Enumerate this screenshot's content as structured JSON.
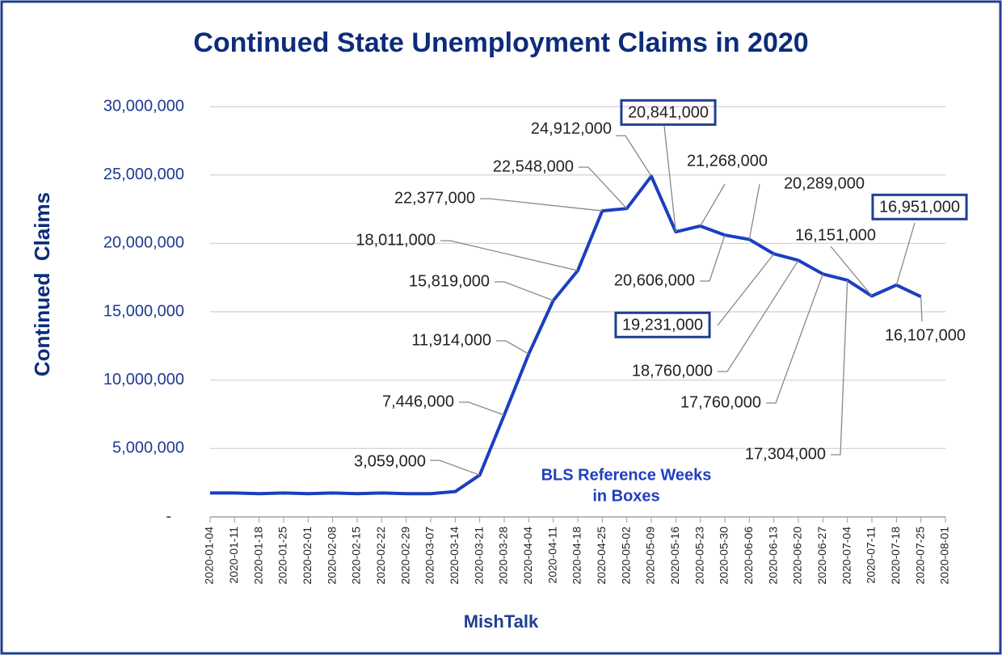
{
  "chart_data": {
    "type": "line",
    "title": "Continued State Unemployment Claims in 2020",
    "y_label": "Continued  Claims",
    "x_label": "MishTalk",
    "annotation": [
      "BLS Reference Weeks",
      "in Boxes"
    ],
    "categories": [
      "2020-01-04",
      "2020-01-11",
      "2020-01-18",
      "2020-01-25",
      "2020-02-01",
      "2020-02-08",
      "2020-02-15",
      "2020-02-22",
      "2020-02-29",
      "2020-03-07",
      "2020-03-14",
      "2020-03-21",
      "2020-03-28",
      "2020-04-04",
      "2020-04-11",
      "2020-04-18",
      "2020-04-25",
      "2020-05-02",
      "2020-05-09",
      "2020-05-16",
      "2020-05-23",
      "2020-05-30",
      "2020-06-06",
      "2020-06-13",
      "2020-06-20",
      "2020-06-27",
      "2020-07-04",
      "2020-07-11",
      "2020-07-18",
      "2020-07-25",
      "2020-08-01"
    ],
    "series": [
      {
        "name": "Continued Claims",
        "color": "#1a3fbf",
        "values": [
          1750000,
          1750000,
          1700000,
          1750000,
          1700000,
          1750000,
          1700000,
          1750000,
          1700000,
          1700000,
          1850000,
          3059000,
          7446000,
          11914000,
          15819000,
          18011000,
          22377000,
          22548000,
          24912000,
          20841000,
          21268000,
          20606000,
          20289000,
          19231000,
          18760000,
          17760000,
          17304000,
          16151000,
          16951000,
          16107000,
          null
        ],
        "value_labels": [
          null,
          null,
          null,
          null,
          null,
          null,
          null,
          null,
          null,
          null,
          null,
          "3,059,000",
          "7,446,000",
          "11,914,000",
          "15,819,000",
          "18,011,000",
          "22,377,000",
          "22,548,000",
          "24,912,000",
          "20,841,000",
          "21,268,000",
          "20,606,000",
          "20,289,000",
          "19,231,000",
          "18,760,000",
          "17,760,000",
          "17,304,000",
          "16,151,000",
          "16,951,000",
          "16,107,000",
          null
        ]
      }
    ],
    "boxed_labels": [
      19,
      23,
      28
    ],
    "ylim": [
      0,
      30000000
    ],
    "yticks": [
      {
        "value": 0,
        "label": "-"
      },
      {
        "value": 5000000,
        "label": "5,000,000"
      },
      {
        "value": 10000000,
        "label": "10,000,000"
      },
      {
        "value": 15000000,
        "label": "15,000,000"
      },
      {
        "value": 20000000,
        "label": "20,000,000"
      },
      {
        "value": 25000000,
        "label": "25,000,000"
      },
      {
        "value": 30000000,
        "label": "30,000,000"
      }
    ],
    "grid": true
  }
}
